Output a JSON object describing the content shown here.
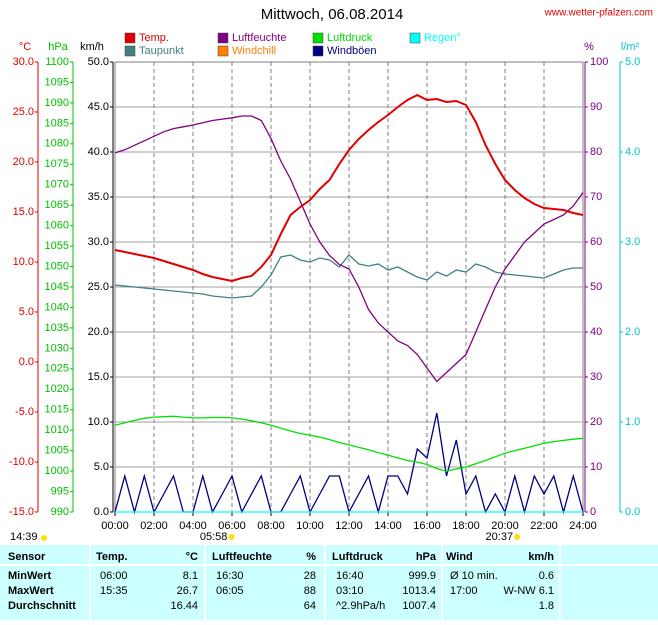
{
  "chart_data": {
    "type": "line",
    "title": "Mittwoch, 06.08.2014",
    "source": "www.wetter-pfalzen.com",
    "updated": "14:39",
    "sunrise": {
      "x": 5.97,
      "label": "05:58"
    },
    "sunset": {
      "x": 20.62,
      "label": "20:37"
    },
    "xlim": [
      0,
      24
    ],
    "xticks": [
      {
        "value": 0,
        "label": "00:00"
      },
      {
        "value": 2,
        "label": "02:00"
      },
      {
        "value": 4,
        "label": "04:00"
      },
      {
        "value": 6,
        "label": "06:00"
      },
      {
        "value": 8,
        "label": "08:00"
      },
      {
        "value": 10,
        "label": "10:00"
      },
      {
        "value": 12,
        "label": "12:00"
      },
      {
        "value": 14,
        "label": "14:00"
      },
      {
        "value": 16,
        "label": "16:00"
      },
      {
        "value": 18,
        "label": "18:00"
      },
      {
        "value": 20,
        "label": "20:00"
      },
      {
        "value": 22,
        "label": "22:00"
      },
      {
        "value": 24,
        "label": "24:00"
      }
    ],
    "grid": true,
    "axes": {
      "temp": {
        "label": "°C",
        "color": "#e00000",
        "side": "left",
        "lim": [
          -15,
          30
        ],
        "ticks": [
          {
            "value": 30,
            "label": "30.0"
          },
          {
            "value": 25,
            "label": "25.0"
          },
          {
            "value": 20,
            "label": "20.0"
          },
          {
            "value": 15,
            "label": "15.0"
          },
          {
            "value": 10,
            "label": "10.0"
          },
          {
            "value": 5,
            "label": "5.0"
          },
          {
            "value": 0,
            "label": "0.0"
          },
          {
            "value": -5,
            "label": "-5.0"
          },
          {
            "value": -10,
            "label": "-10.0"
          },
          {
            "value": -15,
            "label": "-15.0"
          }
        ]
      },
      "press": {
        "label": "hPa",
        "color": "#00c000",
        "side": "left",
        "lim": [
          990,
          1100
        ],
        "ticks": [
          1100,
          1095,
          1090,
          1085,
          1080,
          1075,
          1070,
          1065,
          1060,
          1055,
          1050,
          1045,
          1040,
          1035,
          1030,
          1025,
          1020,
          1015,
          1010,
          1005,
          1000,
          995,
          990
        ]
      },
      "wind": {
        "label": "km/h",
        "color": "#000000",
        "side": "left",
        "lim": [
          0,
          50
        ],
        "ticks": [
          {
            "value": 50,
            "label": "50.0"
          },
          {
            "value": 45,
            "label": "45.0"
          },
          {
            "value": 40,
            "label": "40.0"
          },
          {
            "value": 35,
            "label": "35.0"
          },
          {
            "value": 30,
            "label": "30.0"
          },
          {
            "value": 25,
            "label": "25.0"
          },
          {
            "value": 20,
            "label": "20.0"
          },
          {
            "value": 15,
            "label": "15.0"
          },
          {
            "value": 10,
            "label": "10.0"
          },
          {
            "value": 5,
            "label": "5.0"
          },
          {
            "value": 0,
            "label": "0.0"
          }
        ]
      },
      "hum": {
        "label": "%",
        "color": "#800080",
        "side": "right",
        "lim": [
          0,
          100
        ],
        "ticks": [
          100,
          90,
          80,
          70,
          60,
          50,
          40,
          30,
          20,
          10,
          0
        ]
      },
      "rain": {
        "label": "l/m²",
        "color": "#00c8c8",
        "side": "right",
        "lim": [
          0,
          5
        ],
        "ticks": [
          {
            "value": 5,
            "label": "5.0"
          },
          {
            "value": 4,
            "label": "4.0"
          },
          {
            "value": 3,
            "label": "3.0"
          },
          {
            "value": 2,
            "label": "2.0"
          },
          {
            "value": 1,
            "label": "1.0"
          },
          {
            "value": 0,
            "label": "0.0"
          }
        ]
      }
    },
    "x": [
      0,
      0.5,
      1,
      1.5,
      2,
      2.5,
      3,
      3.5,
      4,
      4.5,
      5,
      5.5,
      6,
      6.5,
      7,
      7.5,
      8,
      8.5,
      9,
      9.5,
      10,
      10.5,
      11,
      11.5,
      12,
      12.5,
      13,
      13.5,
      14,
      14.5,
      15,
      15.5,
      16,
      16.5,
      17,
      17.5,
      18,
      18.5,
      19,
      19.5,
      20,
      20.5,
      21,
      21.5,
      22,
      22.5,
      23,
      23.5,
      24
    ],
    "series": [
      {
        "name": "Windböen",
        "color": "#000080",
        "axis": "wind",
        "values": [
          0,
          4,
          0,
          4,
          0,
          2,
          4,
          0,
          0,
          4,
          0,
          2,
          4,
          0,
          2,
          4,
          0,
          0,
          2,
          4,
          0,
          2,
          4,
          4,
          0,
          2,
          4,
          0,
          4,
          4,
          2,
          7,
          6,
          11,
          4,
          8,
          2,
          4,
          0,
          2,
          0,
          4,
          0,
          4,
          2,
          4,
          0,
          4,
          0
        ]
      },
      {
        "name": "Regen°",
        "color": "#00ffff",
        "axis": "rain",
        "values": [
          0,
          0,
          0,
          0,
          0,
          0,
          0,
          0,
          0,
          0,
          0,
          0,
          0,
          0,
          0,
          0,
          0,
          0,
          0,
          0,
          0,
          0,
          0,
          0,
          0,
          0,
          0,
          0,
          0,
          0,
          0,
          0,
          0,
          0,
          0,
          0,
          0,
          0,
          0,
          0,
          0,
          0,
          0,
          0,
          0,
          0,
          0,
          0,
          0
        ]
      },
      {
        "name": "Luftdruck",
        "color": "#00e000",
        "axis": "press",
        "values": [
          1011.2,
          1011.8,
          1012.4,
          1012.9,
          1013.2,
          1013.3,
          1013.4,
          1013.2,
          1013.0,
          1013.0,
          1013.1,
          1013.1,
          1013.0,
          1012.7,
          1012.3,
          1011.8,
          1011.2,
          1010.5,
          1009.8,
          1009.2,
          1008.8,
          1008.3,
          1007.7,
          1007.0,
          1006.4,
          1005.8,
          1005.2,
          1004.5,
          1003.9,
          1003.2,
          1002.6,
          1002.2,
          1001.6,
          1000.6,
          1000.0,
          1000.5,
          1001.0,
          1001.8,
          1002.6,
          1003.5,
          1004.4,
          1005.0,
          1005.6,
          1006.2,
          1006.8,
          1007.2,
          1007.5,
          1007.8,
          1008.0
        ]
      },
      {
        "name": "Taupunkt",
        "color": "#408080",
        "axis": "temp",
        "values": [
          7.7,
          7.6,
          7.5,
          7.4,
          7.3,
          7.2,
          7.1,
          7.0,
          6.9,
          6.8,
          6.6,
          6.5,
          6.4,
          6.5,
          6.6,
          7.5,
          8.7,
          10.5,
          10.7,
          10.2,
          10.0,
          10.4,
          10.2,
          9.5,
          10.7,
          9.8,
          9.6,
          9.8,
          9.2,
          9.5,
          9.0,
          8.5,
          8.2,
          9.0,
          8.6,
          9.2,
          9.0,
          9.8,
          9.5,
          9.0,
          8.8,
          8.7,
          8.6,
          8.5,
          8.4,
          8.8,
          9.2,
          9.4,
          9.4
        ]
      },
      {
        "name": "Windchill",
        "color": "#ff8000",
        "axis": "temp",
        "values": [
          null,
          null,
          null,
          null,
          null,
          null,
          null,
          null,
          null,
          null,
          null,
          null,
          null,
          null,
          null,
          null,
          null,
          null,
          null,
          null,
          null,
          null,
          null,
          null,
          null,
          null,
          null,
          null,
          null,
          null,
          null,
          null,
          null,
          null,
          null,
          null,
          null,
          null,
          null,
          null,
          null,
          null,
          null,
          null,
          null,
          null,
          null,
          null,
          null
        ]
      },
      {
        "name": "Luftfeuchte",
        "color": "#800080",
        "axis": "hum",
        "values": [
          79.8,
          80.5,
          81.5,
          82.5,
          83.5,
          84.5,
          85.2,
          85.6,
          86,
          86.5,
          87,
          87.3,
          87.6,
          88,
          88,
          87,
          83,
          78,
          74,
          69,
          64,
          60,
          57,
          55,
          54,
          50,
          45,
          42,
          40,
          38,
          37,
          35,
          32,
          29,
          31,
          33,
          35,
          40,
          45,
          50,
          54,
          57,
          60,
          62,
          64,
          65,
          66,
          68,
          71
        ]
      },
      {
        "name": "Temp.",
        "color": "#e00000",
        "axis": "temp",
        "values": [
          11.2,
          11.0,
          10.8,
          10.6,
          10.4,
          10.1,
          9.8,
          9.5,
          9.2,
          8.8,
          8.5,
          8.3,
          8.1,
          8.4,
          8.6,
          9.5,
          10.7,
          12.8,
          14.7,
          15.5,
          16.2,
          17.3,
          18.2,
          19.8,
          21.2,
          22.3,
          23.2,
          24.0,
          24.7,
          25.5,
          26.2,
          26.7,
          26.2,
          26.3,
          26.0,
          26.1,
          25.7,
          24.0,
          21.7,
          19.8,
          18.2,
          17.2,
          16.4,
          15.8,
          15.4,
          15.3,
          15.2,
          14.9,
          14.7
        ]
      }
    ]
  },
  "table": {
    "header": {
      "sensor": "Sensor",
      "temp": "Temp.",
      "temp_unit": "°C",
      "hum": "Luftfeuchte",
      "hum_unit": "%",
      "press": "Luftdruck",
      "press_unit": "hPa",
      "wind": "Wind",
      "wind_unit": "km/h"
    },
    "rows": [
      {
        "label": "MinWert",
        "temp_time": "06:00",
        "temp": "8.1",
        "hum_time": "16:30",
        "hum": "28",
        "press_time": "16:40",
        "press": "999.9",
        "wind_time": "Ø 10 min.",
        "wind": "0.6"
      },
      {
        "label": "MaxWert",
        "temp_time": "15:35",
        "temp": "26.7",
        "hum_time": "06:05",
        "hum": "88",
        "press_time": "03:10",
        "press": "1013.4",
        "wind_time": "17:00",
        "wind": "W-NW 6.1"
      },
      {
        "label": "Durchschnitt",
        "temp": "16.44",
        "hum": "64",
        "press_time": "^2.9hPa/h",
        "press": "1007.4",
        "wind": "1.8"
      }
    ]
  }
}
